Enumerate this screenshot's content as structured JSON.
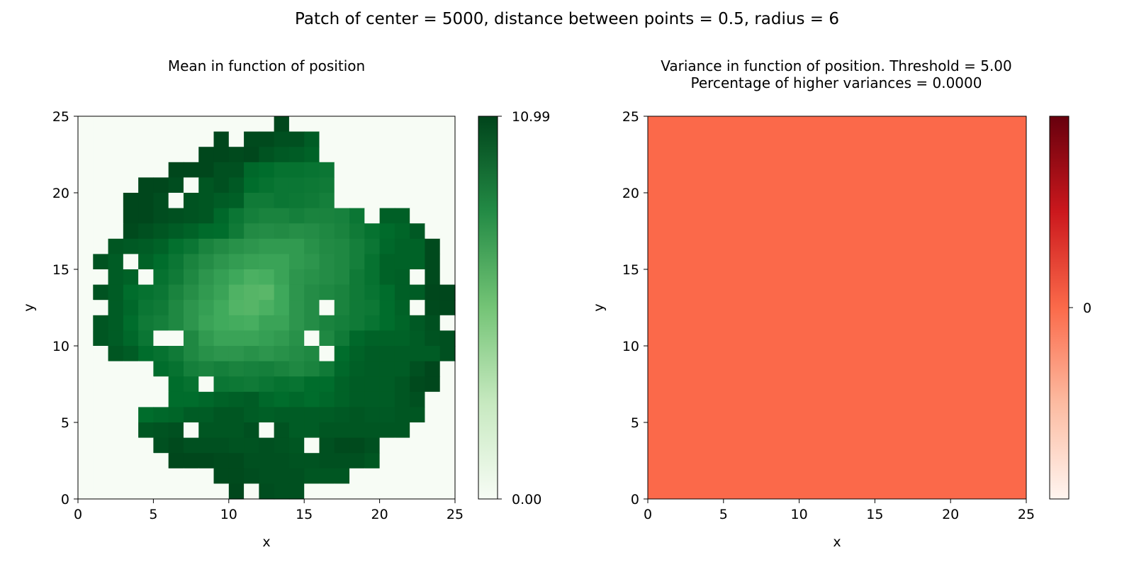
{
  "suptitle": "Patch of center = 5000, distance between points = 0.5, radius = 6",
  "colors": {
    "mean_cmap": "Greens",
    "variance_cmap": "Reds",
    "variance_fill": "#fb694a"
  },
  "chart_data": [
    {
      "type": "heatmap",
      "title": "Mean in function of position",
      "xlabel": "x",
      "ylabel": "y",
      "xlim": [
        0,
        25
      ],
      "ylim": [
        0,
        25
      ],
      "xticks": [
        "0",
        "5",
        "10",
        "15",
        "20",
        "25"
      ],
      "yticks": [
        "0",
        "5",
        "10",
        "15",
        "20",
        "25"
      ],
      "cell_size": 1,
      "colormap": "Greens",
      "colorbar": {
        "min": 0,
        "max": 10.99,
        "tick_labels": [
          "10.99",
          "0.00"
        ]
      },
      "values_rows_top_to_bottom": [
        [
          0,
          0,
          0,
          0,
          0,
          0,
          0,
          0,
          0,
          0,
          0,
          0,
          0,
          10.9,
          0,
          0,
          0,
          0,
          0,
          0,
          0,
          0,
          0,
          0,
          0
        ],
        [
          0,
          0,
          0,
          0,
          0,
          0,
          0,
          0,
          0,
          10.9,
          0,
          10.8,
          10.8,
          10.6,
          10.6,
          10.2,
          0,
          0,
          0,
          0,
          0,
          0,
          0,
          0,
          0
        ],
        [
          0,
          0,
          0,
          0,
          0,
          0,
          0,
          0,
          10.9,
          10.9,
          10.8,
          10.9,
          10.5,
          10.3,
          10.2,
          10.0,
          0,
          0,
          0,
          0,
          0,
          0,
          0,
          0,
          0
        ],
        [
          0,
          0,
          0,
          0,
          0,
          0,
          10.9,
          10.9,
          10.9,
          10.6,
          10.6,
          9.8,
          9.6,
          9.4,
          9.4,
          9.3,
          9.2,
          0,
          0,
          0,
          0,
          0,
          0,
          0,
          0
        ],
        [
          0,
          0,
          0,
          0,
          10.9,
          10.9,
          10.7,
          0,
          10.4,
          10.6,
          10.3,
          9.6,
          9.4,
          9.2,
          9.2,
          9.1,
          9.0,
          0,
          0,
          0,
          0,
          0,
          0,
          0,
          0
        ],
        [
          0,
          0,
          0,
          10.9,
          10.9,
          10.7,
          0,
          10.5,
          10.4,
          10.2,
          10.1,
          9.0,
          9.0,
          9.2,
          9.1,
          9.0,
          8.8,
          0,
          0,
          0,
          0,
          0,
          0,
          0,
          0
        ],
        [
          0,
          0,
          0,
          10.9,
          10.9,
          10.7,
          10.6,
          10.5,
          10.4,
          9.8,
          9.2,
          8.8,
          8.6,
          8.6,
          8.8,
          8.6,
          8.6,
          8.7,
          9.2,
          0,
          10.1,
          10.1,
          0,
          0,
          0
        ],
        [
          0,
          0,
          0,
          10.8,
          10.6,
          10.4,
          10.2,
          10.0,
          9.7,
          9.6,
          9.0,
          8.3,
          8.2,
          8.3,
          8.1,
          8.2,
          8.4,
          8.6,
          9.0,
          9.4,
          9.7,
          9.9,
          10.3,
          0,
          0
        ],
        [
          0,
          0,
          10.4,
          10.3,
          10.2,
          10.0,
          9.5,
          9.2,
          8.6,
          8.3,
          8.0,
          7.8,
          7.6,
          7.6,
          7.6,
          8.0,
          8.3,
          8.4,
          8.8,
          9.2,
          9.8,
          10.0,
          10.0,
          10.8,
          0
        ],
        [
          0,
          10.5,
          10.2,
          0,
          10.0,
          9.6,
          9.2,
          8.6,
          8.2,
          7.8,
          7.5,
          7.3,
          7.2,
          7.2,
          7.6,
          7.8,
          8.2,
          8.4,
          8.8,
          9.4,
          10.0,
          10.0,
          10.0,
          10.8,
          0
        ],
        [
          0,
          0,
          10.2,
          10.0,
          0,
          9.4,
          9.0,
          8.4,
          7.8,
          7.4,
          7.0,
          6.6,
          6.7,
          7.2,
          7.8,
          8.0,
          8.2,
          8.4,
          9.0,
          9.4,
          10.0,
          10.1,
          0,
          10.8,
          0
        ],
        [
          0,
          10.5,
          10.2,
          9.6,
          9.4,
          9.2,
          8.6,
          8.1,
          7.6,
          7.2,
          6.5,
          6.3,
          6.2,
          7.0,
          7.8,
          8.2,
          8.4,
          8.6,
          9.0,
          9.3,
          9.6,
          10.1,
          10.2,
          10.9,
          10.9
        ],
        [
          0,
          0,
          10.2,
          9.8,
          9.2,
          9.0,
          8.4,
          7.8,
          7.4,
          6.9,
          6.4,
          6.3,
          6.6,
          7.0,
          7.8,
          8.2,
          0,
          8.6,
          9.0,
          9.1,
          9.6,
          10.0,
          0,
          10.8,
          10.9
        ],
        [
          0,
          10.4,
          10.2,
          9.6,
          9.0,
          8.8,
          8.4,
          7.8,
          7.2,
          6.9,
          6.8,
          6.7,
          7.2,
          7.2,
          7.8,
          8.2,
          8.6,
          8.8,
          9.0,
          9.3,
          9.6,
          9.9,
          10.3,
          10.6,
          0
        ],
        [
          0,
          10.4,
          10.2,
          9.8,
          9.2,
          0,
          0,
          8.4,
          7.6,
          7.2,
          7.2,
          7.2,
          7.4,
          7.6,
          8.0,
          0,
          8.4,
          9.0,
          9.8,
          10.0,
          10.0,
          10.0,
          10.2,
          10.5,
          10.6
        ],
        [
          0,
          0,
          10.4,
          10.2,
          9.6,
          9.4,
          9.0,
          8.4,
          8.0,
          7.8,
          7.8,
          8.0,
          7.8,
          8.0,
          8.2,
          8.4,
          0,
          9.6,
          10.0,
          10.2,
          10.2,
          10.2,
          10.2,
          10.2,
          10.6
        ],
        [
          0,
          0,
          0,
          0,
          0,
          9.6,
          9.4,
          8.8,
          8.6,
          8.8,
          8.6,
          8.7,
          8.8,
          8.6,
          8.4,
          8.6,
          9.0,
          9.8,
          10.1,
          10.2,
          10.2,
          10.2,
          10.6,
          10.9,
          0
        ],
        [
          0,
          0,
          0,
          0,
          0,
          0,
          9.6,
          9.4,
          0,
          9.2,
          9.1,
          9.0,
          9.2,
          9.4,
          9.3,
          9.6,
          9.6,
          10.0,
          10.2,
          10.2,
          10.2,
          10.4,
          10.8,
          10.9,
          0
        ],
        [
          0,
          0,
          0,
          0,
          0,
          0,
          9.6,
          9.6,
          9.8,
          10.0,
          10.1,
          10.2,
          9.8,
          9.6,
          9.8,
          9.6,
          9.8,
          10.0,
          10.2,
          10.2,
          10.2,
          10.4,
          10.6,
          0,
          0
        ],
        [
          0,
          0,
          0,
          0,
          9.6,
          9.8,
          9.9,
          10.2,
          10.2,
          10.4,
          10.4,
          10.2,
          10.1,
          10.2,
          10.2,
          10.2,
          10.2,
          10.3,
          10.4,
          10.3,
          10.3,
          10.4,
          10.4,
          0,
          0
        ],
        [
          0,
          0,
          0,
          0,
          10.4,
          10.5,
          10.6,
          0,
          10.4,
          10.4,
          10.4,
          10.6,
          0,
          10.5,
          10.2,
          10.2,
          10.4,
          10.4,
          10.4,
          10.4,
          10.4,
          10.4,
          0,
          0,
          0
        ],
        [
          0,
          0,
          0,
          0,
          0,
          10.6,
          10.8,
          10.6,
          10.6,
          10.6,
          10.5,
          10.5,
          10.6,
          10.5,
          10.4,
          0,
          10.6,
          10.8,
          10.8,
          10.6,
          0,
          0,
          0,
          0,
          0
        ],
        [
          0,
          0,
          0,
          0,
          0,
          0,
          10.9,
          10.9,
          10.9,
          10.8,
          10.8,
          10.6,
          10.6,
          10.6,
          10.5,
          10.5,
          10.6,
          10.6,
          10.6,
          10.4,
          0,
          0,
          0,
          0,
          0
        ],
        [
          0,
          0,
          0,
          0,
          0,
          0,
          0,
          0,
          0,
          10.8,
          10.8,
          10.7,
          10.6,
          10.6,
          10.6,
          10.4,
          10.4,
          10.4,
          0,
          0,
          0,
          0,
          0,
          0,
          0
        ],
        [
          0,
          0,
          0,
          0,
          0,
          0,
          0,
          0,
          0,
          0,
          10.9,
          0,
          10.7,
          10.6,
          10.6,
          0,
          0,
          0,
          0,
          0,
          0,
          0,
          0,
          0,
          0
        ]
      ]
    },
    {
      "type": "heatmap",
      "title": "Variance in function of position.  Threshold = 5.00",
      "subtitle": "Percentage of higher variances = 0.0000",
      "xlabel": "x",
      "ylabel": "y",
      "xlim": [
        0,
        25
      ],
      "ylim": [
        0,
        25
      ],
      "xticks": [
        "0",
        "5",
        "10",
        "15",
        "20",
        "25"
      ],
      "yticks": [
        "0",
        "5",
        "10",
        "15",
        "20",
        "25"
      ],
      "colormap": "Reds",
      "uniform_value": 0,
      "colorbar": {
        "tick_labels": [
          "0"
        ]
      }
    }
  ]
}
